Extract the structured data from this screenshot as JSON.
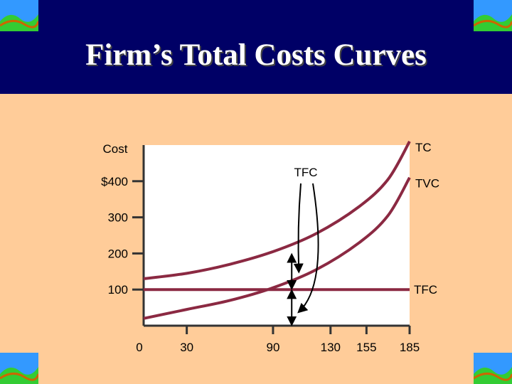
{
  "slide": {
    "title": "Firm’s Total Costs Curves",
    "header_color": "#000066",
    "background_color": "#ffcc99"
  },
  "corner_icons": [
    "landscape-icon",
    "landscape-icon",
    "landscape-icon",
    "landscape-icon"
  ],
  "chart_data": {
    "type": "line",
    "ylabel": "Cost",
    "xlabel": "",
    "x_ticks": [
      "0",
      "30",
      "90",
      "130",
      "155",
      "185"
    ],
    "y_ticks": [
      "100",
      "200",
      "300",
      "$400"
    ],
    "xlim": [
      0,
      185
    ],
    "ylim": [
      0,
      500
    ],
    "grid": false,
    "series": [
      {
        "name": "TC",
        "color": "#8b2942",
        "x": [
          0,
          30,
          60,
          90,
          120,
          150,
          170,
          185
        ],
        "y": [
          130,
          145,
          170,
          205,
          255,
          330,
          405,
          510
        ]
      },
      {
        "name": "TVC",
        "color": "#8b2942",
        "x": [
          0,
          30,
          60,
          90,
          120,
          150,
          170,
          185
        ],
        "y": [
          20,
          45,
          70,
          105,
          155,
          230,
          305,
          410
        ]
      },
      {
        "name": "TFC",
        "color": "#8b2942",
        "x": [
          0,
          185
        ],
        "y": [
          100,
          100
        ]
      }
    ],
    "annotations": {
      "tfc_pointer": "TFC",
      "gap_markers": [
        {
          "x": 103,
          "y_low": 100,
          "y_high": 200
        },
        {
          "x": 103,
          "y_low": 0,
          "y_high": 100
        }
      ]
    }
  }
}
